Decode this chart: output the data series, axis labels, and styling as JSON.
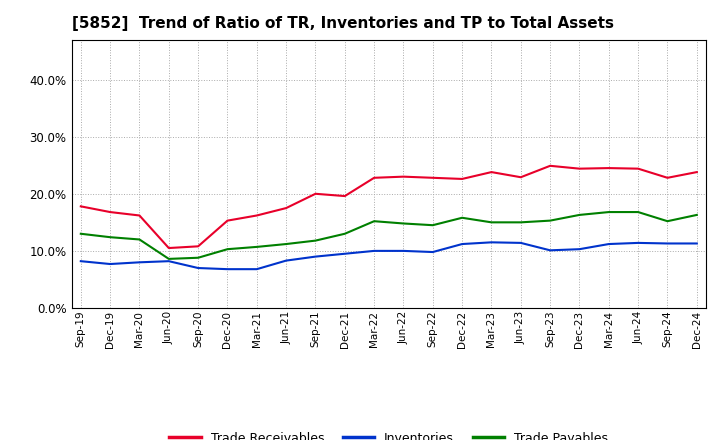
{
  "title": "[5852]  Trend of Ratio of TR, Inventories and TP to Total Assets",
  "x_labels": [
    "Sep-19",
    "Dec-19",
    "Mar-20",
    "Jun-20",
    "Sep-20",
    "Dec-20",
    "Mar-21",
    "Jun-21",
    "Sep-21",
    "Dec-21",
    "Mar-22",
    "Jun-22",
    "Sep-22",
    "Dec-22",
    "Mar-23",
    "Jun-23",
    "Sep-23",
    "Dec-23",
    "Mar-24",
    "Jun-24",
    "Sep-24",
    "Dec-24"
  ],
  "trade_receivables": [
    0.178,
    0.168,
    0.162,
    0.105,
    0.108,
    0.153,
    0.162,
    0.175,
    0.2,
    0.196,
    0.228,
    0.23,
    0.228,
    0.226,
    0.238,
    0.229,
    0.249,
    0.244,
    0.245,
    0.244,
    0.228,
    0.238
  ],
  "inventories": [
    0.082,
    0.077,
    0.08,
    0.082,
    0.07,
    0.068,
    0.068,
    0.083,
    0.09,
    0.095,
    0.1,
    0.1,
    0.098,
    0.112,
    0.115,
    0.114,
    0.101,
    0.103,
    0.112,
    0.114,
    0.113,
    0.113
  ],
  "trade_payables": [
    0.13,
    0.124,
    0.12,
    0.086,
    0.088,
    0.103,
    0.107,
    0.112,
    0.118,
    0.13,
    0.152,
    0.148,
    0.145,
    0.158,
    0.15,
    0.15,
    0.153,
    0.163,
    0.168,
    0.168,
    0.152,
    0.163
  ],
  "tr_color": "#e8002a",
  "inv_color": "#0033cc",
  "tp_color": "#008000",
  "ylim": [
    0.0,
    0.47
  ],
  "yticks": [
    0.0,
    0.1,
    0.2,
    0.3,
    0.4
  ],
  "background_color": "#ffffff",
  "plot_bg_color": "#ffffff",
  "grid_color": "#aaaaaa",
  "legend_labels": [
    "Trade Receivables",
    "Inventories",
    "Trade Payables"
  ]
}
